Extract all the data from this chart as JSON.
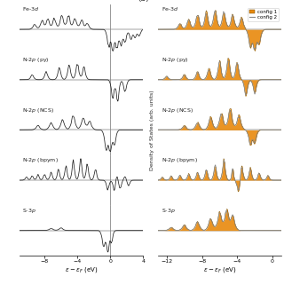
{
  "panel_a_xlim": [
    -11,
    4
  ],
  "panel_b_xlim": [
    -13,
    1
  ],
  "panel_a_xticks": [
    -8,
    -4,
    0,
    4
  ],
  "panel_b_xticks": [
    -12,
    -8,
    -4,
    0
  ],
  "orange_color": "#E8890C",
  "gray_color": "#888888",
  "black_color": "#222222",
  "legend_config1": "config 1",
  "legend_config2": "config 2",
  "ylabel_b": "Density of States (arb. units)"
}
